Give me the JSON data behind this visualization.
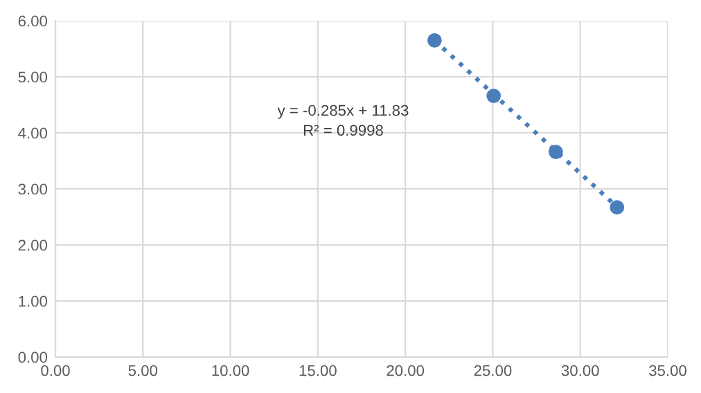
{
  "chart_data": {
    "type": "scatter",
    "xlim": [
      0,
      35
    ],
    "ylim": [
      0,
      6
    ],
    "xticks": [
      {
        "value": 0,
        "label": "0.00"
      },
      {
        "value": 5,
        "label": "5.00"
      },
      {
        "value": 10,
        "label": "10.00"
      },
      {
        "value": 15,
        "label": "15.00"
      },
      {
        "value": 20,
        "label": "20.00"
      },
      {
        "value": 25,
        "label": "25.00"
      },
      {
        "value": 30,
        "label": "30.00"
      },
      {
        "value": 35,
        "label": "35.00"
      }
    ],
    "yticks": [
      {
        "value": 0,
        "label": "0.00"
      },
      {
        "value": 1,
        "label": "1.00"
      },
      {
        "value": 2,
        "label": "2.00"
      },
      {
        "value": 3,
        "label": "3.00"
      },
      {
        "value": 4,
        "label": "4.00"
      },
      {
        "value": 5,
        "label": "5.00"
      },
      {
        "value": 6,
        "label": "6.00"
      }
    ],
    "grid": true,
    "marker": "circle",
    "series": [
      {
        "color": "#4a7ebb",
        "x": [
          21.67,
          25.05,
          28.6,
          32.1
        ],
        "values": [
          5.65,
          4.66,
          3.66,
          2.67
        ]
      },
      {
        "type": "line",
        "color": "#4a7ebb",
        "line_style": "dotted",
        "marker": "none",
        "x": [
          21.67,
          32.1
        ],
        "values": [
          5.65,
          2.68
        ]
      }
    ],
    "annotations": [
      "y = -0.285x + 11.83\nR² = 0.9998"
    ]
  }
}
